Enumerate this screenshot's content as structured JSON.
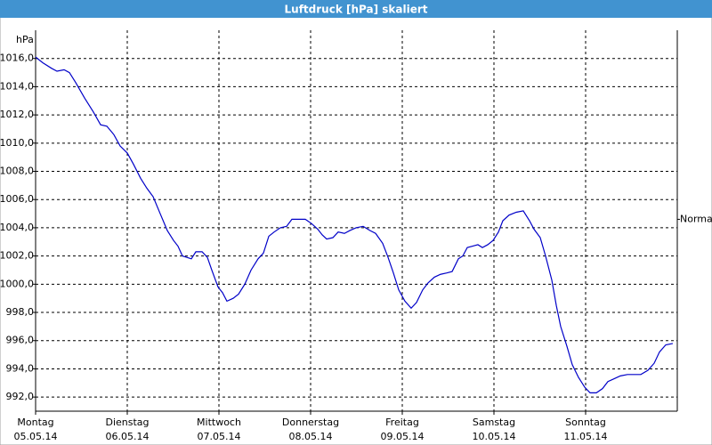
{
  "chart_data": {
    "type": "line",
    "title": "Luftdruck [hPa] skaliert",
    "y_unit": "hPa",
    "annotation": {
      "text": "Normal",
      "value": 1004.6
    },
    "xlim": [
      0,
      7
    ],
    "xticks": [
      {
        "value": 0,
        "label": "Montag",
        "date": "05.05.14"
      },
      {
        "value": 1,
        "label": "Dienstag",
        "date": "06.05.14"
      },
      {
        "value": 2,
        "label": "Mittwoch",
        "date": "07.05.14"
      },
      {
        "value": 3,
        "label": "Donnerstag",
        "date": "08.05.14"
      },
      {
        "value": 4,
        "label": "Freitag",
        "date": "09.05.14"
      },
      {
        "value": 5,
        "label": "Samstag",
        "date": "10.05.14"
      },
      {
        "value": 6,
        "label": "Sonntag",
        "date": "11.05.14"
      }
    ],
    "ylim": [
      991,
      1018
    ],
    "yticks": [
      {
        "value": 992,
        "label": "992,0"
      },
      {
        "value": 994,
        "label": "994,0"
      },
      {
        "value": 996,
        "label": "996,0"
      },
      {
        "value": 998,
        "label": "998,0"
      },
      {
        "value": 1000,
        "label": "1000,0"
      },
      {
        "value": 1002,
        "label": "1002,0"
      },
      {
        "value": 1004,
        "label": "1004,0"
      },
      {
        "value": 1006,
        "label": "1006,0"
      },
      {
        "value": 1008,
        "label": "1008,0"
      },
      {
        "value": 1010,
        "label": "1010,0"
      },
      {
        "value": 1012,
        "label": "1012,0"
      },
      {
        "value": 1014,
        "label": "1014,0"
      },
      {
        "value": 1016,
        "label": "1016,0"
      }
    ],
    "grid": true,
    "color": "#0000c8",
    "x": [
      0,
      0.078,
      0.175,
      0.233,
      0.311,
      0.369,
      0.437,
      0.534,
      0.631,
      0.709,
      0.777,
      0.854,
      0.922,
      1.0,
      1.068,
      1.146,
      1.214,
      1.282,
      1.359,
      1.437,
      1.505,
      1.553,
      1.602,
      1.65,
      1.699,
      1.748,
      1.816,
      1.874,
      1.922,
      1.99,
      2.039,
      2.087,
      2.155,
      2.214,
      2.282,
      2.35,
      2.427,
      2.485,
      2.544,
      2.602,
      2.67,
      2.738,
      2.796,
      2.864,
      2.942,
      3.01,
      3.078,
      3.126,
      3.175,
      3.243,
      3.301,
      3.369,
      3.427,
      3.495,
      3.573,
      3.65,
      3.709,
      3.786,
      3.845,
      3.903,
      3.961,
      4.029,
      4.097,
      4.155,
      4.223,
      4.282,
      4.35,
      4.417,
      4.485,
      4.544,
      4.612,
      4.66,
      4.709,
      4.767,
      4.825,
      4.874,
      4.932,
      4.99,
      5.049,
      5.097,
      5.165,
      5.243,
      5.32,
      5.388,
      5.437,
      5.505,
      5.563,
      5.631,
      5.68,
      5.728,
      5.796,
      5.854,
      5.922,
      5.99,
      6.049,
      6.117,
      6.184,
      6.243,
      6.311,
      6.379,
      6.456,
      6.534,
      6.602,
      6.68,
      6.748,
      6.806,
      6.874,
      6.951
    ],
    "values": [
      1016.1,
      1015.7,
      1015.3,
      1015.1,
      1015.2,
      1015.0,
      1014.3,
      1013.2,
      1012.2,
      1011.3,
      1011.2,
      1010.6,
      1009.8,
      1009.3,
      1008.5,
      1007.5,
      1006.8,
      1006.2,
      1005.0,
      1003.8,
      1003.1,
      1002.7,
      1002.0,
      1001.9,
      1001.8,
      1002.3,
      1002.3,
      1001.9,
      1001.0,
      999.8,
      999.4,
      998.8,
      999.0,
      999.3,
      1000.0,
      1001.0,
      1001.8,
      1002.2,
      1003.4,
      1003.7,
      1004.0,
      1004.1,
      1004.6,
      1004.6,
      1004.6,
      1004.3,
      1003.9,
      1003.5,
      1003.2,
      1003.3,
      1003.7,
      1003.6,
      1003.8,
      1004.0,
      1004.1,
      1003.8,
      1003.6,
      1002.9,
      1001.9,
      1000.8,
      999.6,
      998.8,
      998.3,
      998.7,
      999.6,
      1000.1,
      1000.5,
      1000.7,
      1000.8,
      1000.9,
      1001.8,
      1002.0,
      1002.6,
      1002.7,
      1002.8,
      1002.6,
      1002.8,
      1003.1,
      1003.7,
      1004.5,
      1004.9,
      1005.1,
      1005.2,
      1004.5,
      1003.9,
      1003.3,
      1002.0,
      1000.3,
      998.5,
      997.0,
      995.6,
      994.3,
      993.4,
      992.7,
      992.3,
      992.3,
      992.6,
      993.1,
      993.3,
      993.5,
      993.6,
      993.6,
      993.6,
      993.9,
      994.4,
      995.2,
      995.7,
      995.8
    ]
  }
}
